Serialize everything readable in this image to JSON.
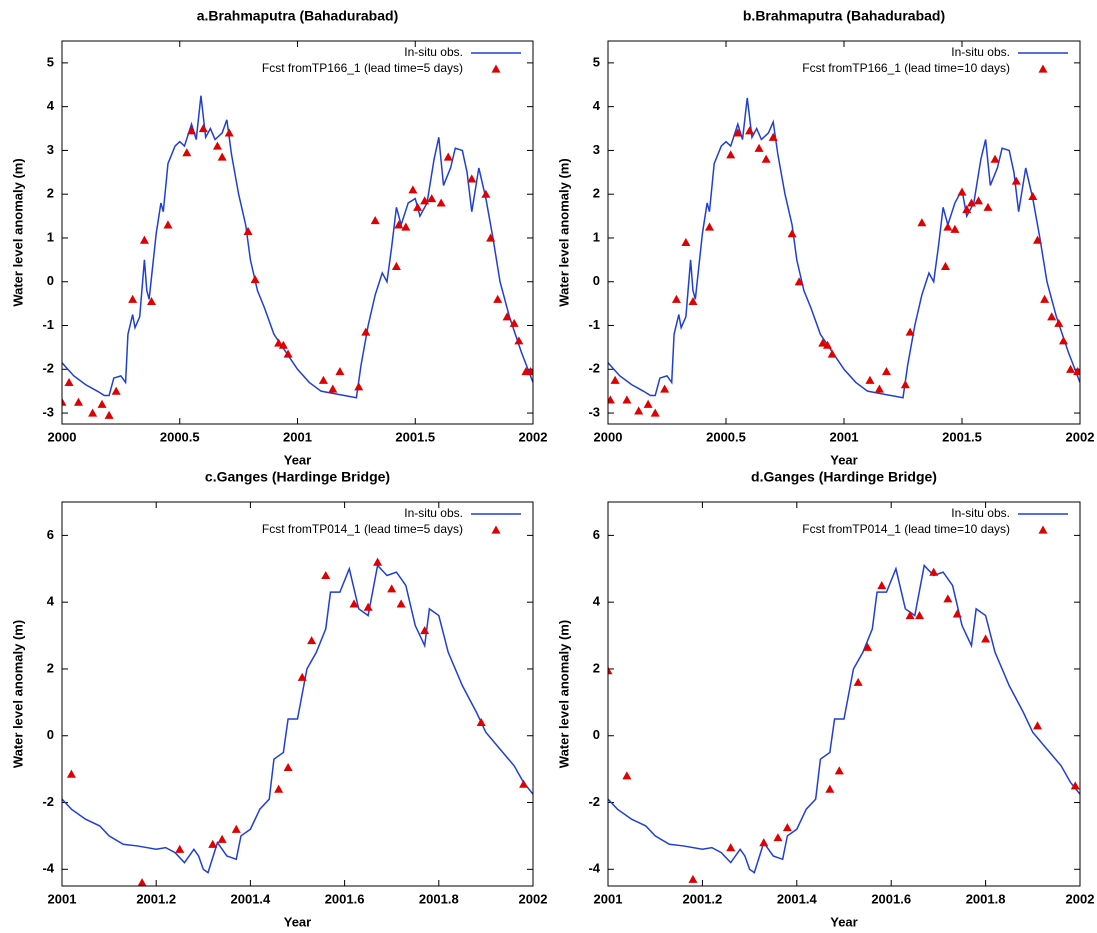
{
  "chart_data": [
    {
      "type": "line",
      "title": "a.Brahmaputra (Bahadurabad)",
      "xlabel": "Year",
      "ylabel": "Water level anomaly (m)",
      "xlim": [
        2000,
        2002
      ],
      "xticks": [
        2000,
        2000.5,
        2001,
        2001.5,
        2002
      ],
      "ylim": [
        -3.25,
        5.5
      ],
      "yticks": [
        -3,
        -2,
        -1,
        0,
        1,
        2,
        3,
        4,
        5
      ],
      "legend": "top-right",
      "series": [
        {
          "name": "In-situ obs.",
          "color": "#1f3fd6",
          "mark": "line",
          "x": [
            2000,
            2000.05,
            2000.1,
            2000.15,
            2000.18,
            2000.2,
            2000.22,
            2000.25,
            2000.27,
            2000.28,
            2000.3,
            2000.31,
            2000.33,
            2000.35,
            2000.36,
            2000.37,
            2000.4,
            2000.42,
            2000.43,
            2000.45,
            2000.48,
            2000.5,
            2000.52,
            2000.55,
            2000.57,
            2000.59,
            2000.61,
            2000.63,
            2000.65,
            2000.68,
            2000.7,
            2000.72,
            2000.75,
            2000.78,
            2000.8,
            2000.83,
            2000.86,
            2000.9,
            2000.95,
            2001,
            2001.05,
            2001.1,
            2001.15,
            2001.25,
            2001.27,
            2001.3,
            2001.33,
            2001.36,
            2001.38,
            2001.4,
            2001.42,
            2001.44,
            2001.47,
            2001.5,
            2001.52,
            2001.55,
            2001.58,
            2001.6,
            2001.62,
            2001.65,
            2001.67,
            2001.7,
            2001.72,
            2001.74,
            2001.77,
            2001.8,
            2001.83,
            2001.86,
            2001.9,
            2001.95,
            2002
          ],
          "values": [
            -1.85,
            -2.15,
            -2.35,
            -2.5,
            -2.6,
            -2.6,
            -2.2,
            -2.15,
            -2.3,
            -1.2,
            -0.75,
            -1.05,
            -0.8,
            0.5,
            -0.2,
            -0.4,
            1.1,
            1.8,
            1.6,
            2.7,
            3.1,
            3.2,
            3.1,
            3.6,
            3.25,
            4.25,
            3.3,
            3.5,
            3.25,
            3.4,
            3.7,
            2.9,
            2.0,
            1.3,
            0.5,
            -0.2,
            -0.6,
            -1.2,
            -1.6,
            -2.0,
            -2.3,
            -2.5,
            -2.55,
            -2.65,
            -1.9,
            -1.0,
            -0.3,
            0.2,
            0.0,
            0.8,
            1.7,
            1.3,
            1.8,
            1.9,
            1.5,
            1.8,
            2.8,
            3.3,
            2.2,
            2.6,
            3.05,
            3.0,
            2.5,
            1.6,
            2.6,
            1.9,
            1.0,
            0.0,
            -0.8,
            -1.6,
            -2.3
          ]
        },
        {
          "name": "Fcst fromTP166_1 (lead time=5 days)",
          "color": "#e00000",
          "mark": "triangle",
          "x": [
            2000.0,
            2000.03,
            2000.07,
            2000.13,
            2000.17,
            2000.2,
            2000.23,
            2000.3,
            2000.35,
            2000.38,
            2000.45,
            2000.53,
            2000.55,
            2000.6,
            2000.66,
            2000.68,
            2000.71,
            2000.79,
            2000.82,
            2000.92,
            2000.94,
            2000.96,
            2001.11,
            2001.15,
            2001.18,
            2001.26,
            2001.29,
            2001.33,
            2001.42,
            2001.43,
            2001.46,
            2001.49,
            2001.51,
            2001.54,
            2001.57,
            2001.61,
            2001.64,
            2001.74,
            2001.8,
            2001.82,
            2001.85,
            2001.89,
            2001.92,
            2001.94,
            2001.97,
            2001.99
          ],
          "values": [
            -2.75,
            -2.3,
            -2.75,
            -3.0,
            -2.8,
            -3.05,
            -2.5,
            -0.4,
            0.95,
            -0.45,
            1.3,
            2.95,
            3.45,
            3.5,
            3.1,
            2.85,
            3.4,
            1.15,
            0.05,
            -1.4,
            -1.45,
            -1.65,
            -2.25,
            -2.45,
            -2.05,
            -2.4,
            -1.15,
            1.4,
            0.35,
            1.3,
            1.25,
            2.1,
            1.7,
            1.85,
            1.9,
            1.8,
            2.85,
            2.35,
            2.0,
            1.0,
            -0.4,
            -0.8,
            -0.95,
            -1.35,
            -2.05,
            -2.05
          ]
        }
      ]
    },
    {
      "type": "line",
      "title": "b.Brahmaputra (Bahadurabad)",
      "xlabel": "Year",
      "ylabel": "Water level anomaly (m)",
      "xlim": [
        2000,
        2002
      ],
      "xticks": [
        2000,
        2000.5,
        2001,
        2001.5,
        2002
      ],
      "ylim": [
        -3.25,
        5.5
      ],
      "yticks": [
        -3,
        -2,
        -1,
        0,
        1,
        2,
        3,
        4,
        5
      ],
      "legend": "top-right",
      "series": [
        {
          "name": "In-situ obs.",
          "color": "#1f3fd6",
          "mark": "line",
          "x": [
            2000,
            2000.05,
            2000.1,
            2000.15,
            2000.18,
            2000.2,
            2000.22,
            2000.25,
            2000.27,
            2000.28,
            2000.3,
            2000.31,
            2000.33,
            2000.35,
            2000.36,
            2000.37,
            2000.4,
            2000.42,
            2000.43,
            2000.45,
            2000.48,
            2000.5,
            2000.52,
            2000.55,
            2000.57,
            2000.59,
            2000.61,
            2000.63,
            2000.65,
            2000.68,
            2000.7,
            2000.72,
            2000.75,
            2000.78,
            2000.8,
            2000.83,
            2000.86,
            2000.9,
            2000.95,
            2001,
            2001.05,
            2001.1,
            2001.15,
            2001.25,
            2001.27,
            2001.3,
            2001.33,
            2001.36,
            2001.38,
            2001.4,
            2001.42,
            2001.44,
            2001.47,
            2001.5,
            2001.52,
            2001.55,
            2001.58,
            2001.6,
            2001.62,
            2001.65,
            2001.67,
            2001.7,
            2001.72,
            2001.74,
            2001.77,
            2001.8,
            2001.83,
            2001.86,
            2001.9,
            2001.95,
            2002
          ],
          "values": [
            -1.85,
            -2.15,
            -2.35,
            -2.5,
            -2.6,
            -2.6,
            -2.2,
            -2.15,
            -2.3,
            -1.2,
            -0.75,
            -1.05,
            -0.8,
            0.5,
            -0.2,
            -0.4,
            1.1,
            1.8,
            1.6,
            2.7,
            3.1,
            3.2,
            3.1,
            3.6,
            3.25,
            4.2,
            3.3,
            3.5,
            3.25,
            3.4,
            3.65,
            2.9,
            2.0,
            1.3,
            0.5,
            -0.2,
            -0.6,
            -1.2,
            -1.6,
            -2.0,
            -2.3,
            -2.5,
            -2.55,
            -2.65,
            -1.9,
            -1.0,
            -0.3,
            0.2,
            0.0,
            0.8,
            1.7,
            1.3,
            1.8,
            2.1,
            1.5,
            1.8,
            2.8,
            3.25,
            2.2,
            2.6,
            3.05,
            3.0,
            2.5,
            1.6,
            2.6,
            1.9,
            1.0,
            0.0,
            -0.8,
            -1.6,
            -2.3
          ]
        },
        {
          "name": "Fcst fromTP166_1 (lead time=10 days)",
          "color": "#e00000",
          "mark": "triangle",
          "x": [
            2000.01,
            2000.03,
            2000.08,
            2000.13,
            2000.17,
            2000.2,
            2000.24,
            2000.29,
            2000.33,
            2000.36,
            2000.43,
            2000.52,
            2000.55,
            2000.6,
            2000.64,
            2000.67,
            2000.7,
            2000.78,
            2000.81,
            2000.91,
            2000.93,
            2000.95,
            2001.11,
            2001.15,
            2001.18,
            2001.26,
            2001.28,
            2001.33,
            2001.43,
            2001.44,
            2001.47,
            2001.5,
            2001.52,
            2001.54,
            2001.57,
            2001.61,
            2001.64,
            2001.73,
            2001.8,
            2001.82,
            2001.85,
            2001.88,
            2001.91,
            2001.93,
            2001.96,
            2001.99
          ],
          "values": [
            -2.7,
            -2.25,
            -2.7,
            -2.95,
            -2.8,
            -3.0,
            -2.45,
            -0.4,
            0.9,
            -0.45,
            1.25,
            2.9,
            3.4,
            3.45,
            3.05,
            2.8,
            3.3,
            1.1,
            0.0,
            -1.4,
            -1.45,
            -1.65,
            -2.25,
            -2.45,
            -2.05,
            -2.35,
            -1.15,
            1.35,
            0.35,
            1.25,
            1.2,
            2.05,
            1.65,
            1.8,
            1.85,
            1.7,
            2.8,
            2.3,
            1.95,
            0.95,
            -0.4,
            -0.8,
            -0.95,
            -1.35,
            -2.0,
            -2.05
          ]
        }
      ]
    },
    {
      "type": "line",
      "title": "c.Ganges (Hardinge Bridge)",
      "xlabel": "Year",
      "ylabel": "Water level anomaly (m)",
      "xlim": [
        2001,
        2002
      ],
      "xticks": [
        2001,
        2001.2,
        2001.4,
        2001.6,
        2001.8,
        2002
      ],
      "ylim": [
        -4.5,
        7
      ],
      "yticks": [
        -4,
        -2,
        0,
        2,
        4,
        6
      ],
      "legend": "top-right",
      "series": [
        {
          "name": "In-situ obs.",
          "color": "#1f3fd6",
          "mark": "line",
          "x": [
            2001.0,
            2001.02,
            2001.05,
            2001.08,
            2001.1,
            2001.13,
            2001.16,
            2001.2,
            2001.22,
            2001.24,
            2001.26,
            2001.28,
            2001.29,
            2001.3,
            2001.31,
            2001.33,
            2001.35,
            2001.37,
            2001.38,
            2001.4,
            2001.42,
            2001.44,
            2001.45,
            2001.47,
            2001.48,
            2001.5,
            2001.52,
            2001.54,
            2001.56,
            2001.57,
            2001.59,
            2001.61,
            2001.63,
            2001.65,
            2001.67,
            2001.69,
            2001.71,
            2001.73,
            2001.75,
            2001.77,
            2001.78,
            2001.8,
            2001.82,
            2001.85,
            2001.88,
            2001.9,
            2001.93,
            2001.96,
            2001.98,
            2002.0
          ],
          "values": [
            -1.9,
            -2.2,
            -2.5,
            -2.7,
            -3.0,
            -3.25,
            -3.3,
            -3.4,
            -3.35,
            -3.5,
            -3.8,
            -3.4,
            -3.6,
            -4.0,
            -4.1,
            -3.2,
            -3.6,
            -3.7,
            -3.0,
            -2.8,
            -2.2,
            -1.9,
            -0.7,
            -0.5,
            0.5,
            0.5,
            2.0,
            2.5,
            3.2,
            4.3,
            4.3,
            5.0,
            3.8,
            3.6,
            5.1,
            4.8,
            4.9,
            4.5,
            3.3,
            2.7,
            3.8,
            3.6,
            2.5,
            1.5,
            0.7,
            0.1,
            -0.4,
            -0.9,
            -1.4,
            -1.75
          ]
        },
        {
          "name": "Fcst fromTP014_1 (lead time=5 days)",
          "color": "#e00000",
          "mark": "triangle",
          "x": [
            2001.02,
            2001.17,
            2001.25,
            2001.32,
            2001.34,
            2001.37,
            2001.46,
            2001.48,
            2001.51,
            2001.53,
            2001.56,
            2001.62,
            2001.65,
            2001.67,
            2001.7,
            2001.72,
            2001.77,
            2001.89,
            2001.98
          ],
          "values": [
            -1.15,
            -4.4,
            -3.4,
            -3.25,
            -3.1,
            -2.8,
            -1.6,
            -0.95,
            1.75,
            2.85,
            4.8,
            3.95,
            3.85,
            5.2,
            4.4,
            3.95,
            3.15,
            0.4,
            -1.45
          ]
        }
      ]
    },
    {
      "type": "line",
      "title": "d.Ganges (Hardinge Bridge)",
      "xlabel": "Year",
      "ylabel": "Water level anomaly (m)",
      "xlim": [
        2001,
        2002
      ],
      "xticks": [
        2001,
        2001.2,
        2001.4,
        2001.6,
        2001.8,
        2002
      ],
      "ylim": [
        -4.5,
        7
      ],
      "yticks": [
        -4,
        -2,
        0,
        2,
        4,
        6
      ],
      "legend": "top-right",
      "series": [
        {
          "name": "In-situ obs.",
          "color": "#1f3fd6",
          "mark": "line",
          "x": [
            2001.0,
            2001.02,
            2001.05,
            2001.08,
            2001.1,
            2001.13,
            2001.16,
            2001.2,
            2001.22,
            2001.24,
            2001.26,
            2001.28,
            2001.29,
            2001.3,
            2001.31,
            2001.33,
            2001.35,
            2001.37,
            2001.38,
            2001.4,
            2001.42,
            2001.44,
            2001.45,
            2001.47,
            2001.48,
            2001.5,
            2001.52,
            2001.54,
            2001.56,
            2001.57,
            2001.59,
            2001.61,
            2001.63,
            2001.65,
            2001.67,
            2001.69,
            2001.71,
            2001.73,
            2001.75,
            2001.77,
            2001.78,
            2001.8,
            2001.82,
            2001.85,
            2001.88,
            2001.9,
            2001.93,
            2001.96,
            2001.98,
            2002.0
          ],
          "values": [
            -1.9,
            -2.2,
            -2.5,
            -2.7,
            -3.0,
            -3.25,
            -3.3,
            -3.4,
            -3.35,
            -3.5,
            -3.8,
            -3.4,
            -3.6,
            -4.0,
            -4.1,
            -3.2,
            -3.6,
            -3.7,
            -3.0,
            -2.8,
            -2.2,
            -1.9,
            -0.7,
            -0.5,
            0.5,
            0.5,
            2.0,
            2.5,
            3.2,
            4.3,
            4.3,
            5.0,
            3.8,
            3.6,
            5.1,
            4.8,
            4.9,
            4.5,
            3.3,
            2.7,
            3.8,
            3.6,
            2.5,
            1.5,
            0.7,
            0.1,
            -0.4,
            -0.9,
            -1.4,
            -1.75
          ]
        },
        {
          "name": "Fcst fromTP014_1 (lead time=10 days)",
          "color": "#e00000",
          "mark": "triangle",
          "x": [
            2001.0,
            2001.04,
            2001.18,
            2001.26,
            2001.33,
            2001.36,
            2001.38,
            2001.47,
            2001.49,
            2001.53,
            2001.55,
            2001.58,
            2001.64,
            2001.66,
            2001.69,
            2001.72,
            2001.74,
            2001.8,
            2001.91,
            2001.99
          ],
          "values": [
            1.95,
            -1.2,
            -4.3,
            -3.35,
            -3.2,
            -3.05,
            -2.75,
            -1.6,
            -1.05,
            1.6,
            2.65,
            4.5,
            3.6,
            3.6,
            4.9,
            4.1,
            3.65,
            2.9,
            0.3,
            -1.5
          ]
        }
      ]
    }
  ]
}
